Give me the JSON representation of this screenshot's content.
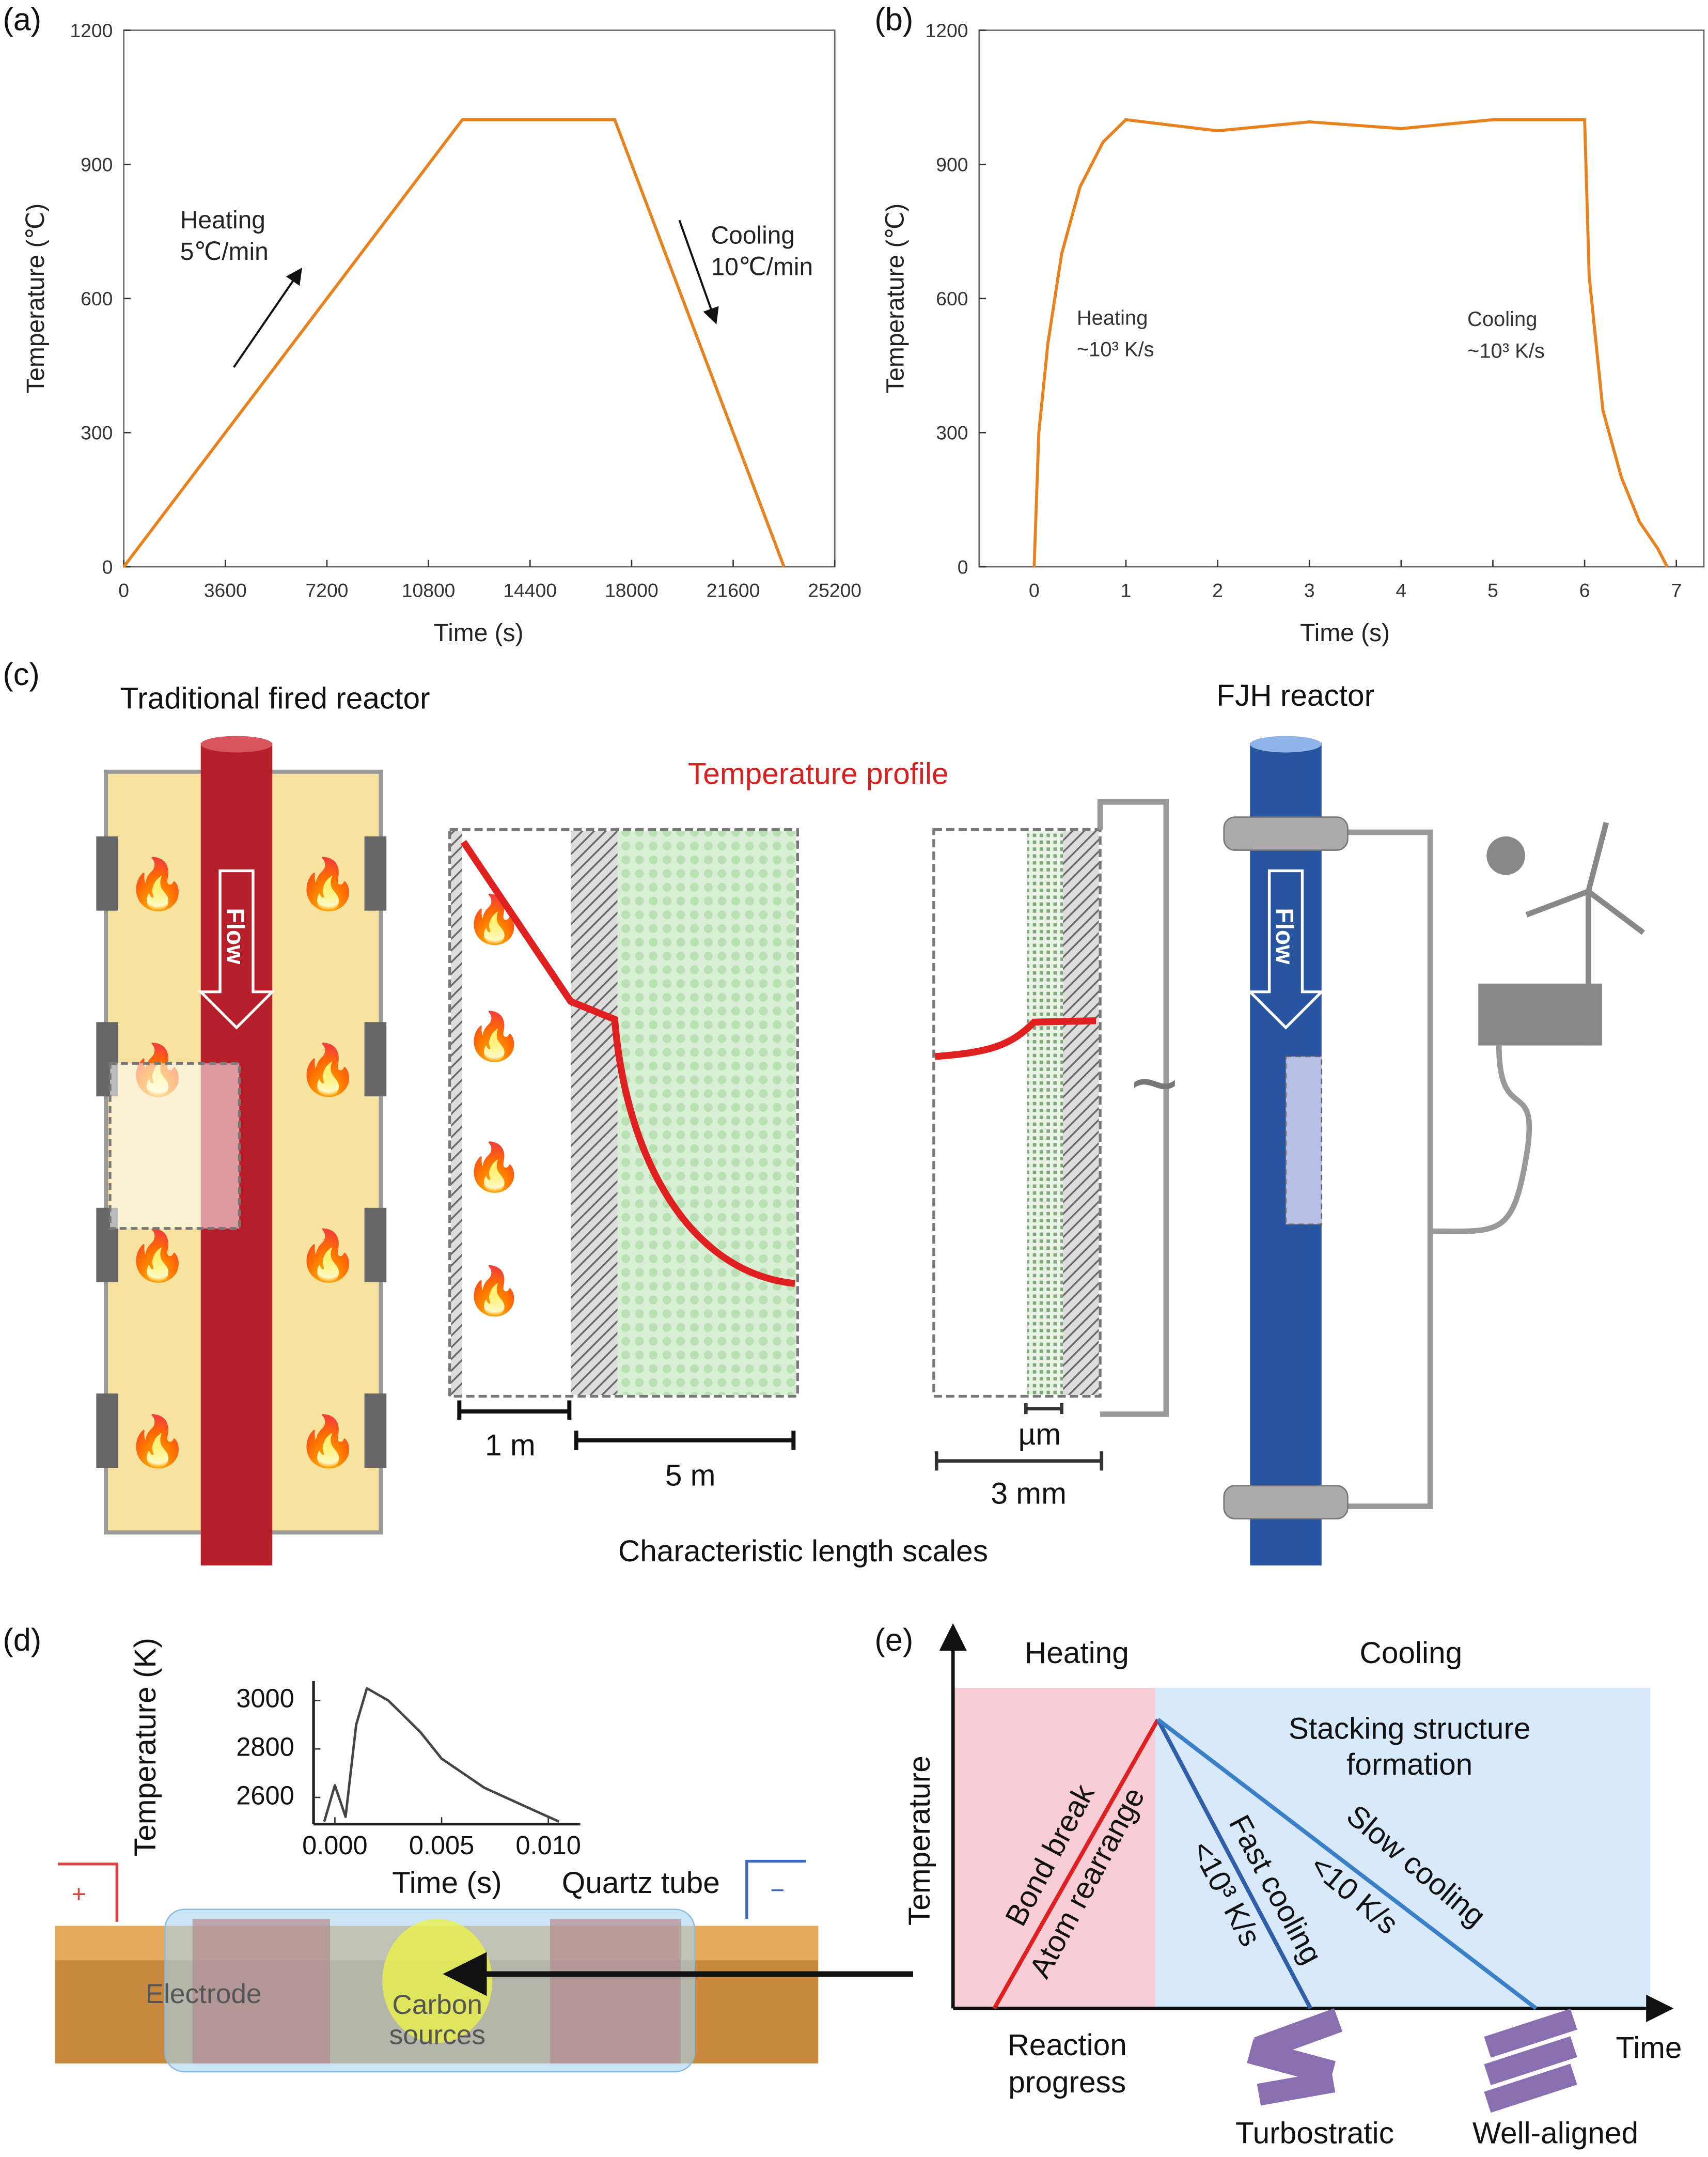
{
  "panels": {
    "a": "(a)",
    "b": "(b)",
    "c": "(c)",
    "d": "(d)",
    "e": "(e)"
  },
  "chart_data": [
    {
      "type": "line",
      "panel": "a",
      "xlabel": "Time (s)",
      "ylabel": "Temperature (℃)",
      "xlim": [
        0,
        25200
      ],
      "ylim": [
        0,
        1200
      ],
      "xticks": [
        "0",
        "3600",
        "7200",
        "10800",
        "14400",
        "18000",
        "21600",
        "25200"
      ],
      "yticks": [
        "0",
        "300",
        "600",
        "900",
        "1200"
      ],
      "x": [
        0,
        12000,
        17400,
        23400
      ],
      "y": [
        0,
        1000,
        1000,
        0
      ],
      "color": "#e8821e",
      "annotations": [
        {
          "line1": "Heating",
          "line2": "5℃/min"
        },
        {
          "line1": "Cooling",
          "line2": "10℃/min"
        }
      ]
    },
    {
      "type": "line",
      "panel": "b",
      "xlabel": "Time (s)",
      "ylabel": "Temperature (℃)",
      "xlim": [
        -0.6,
        7.3
      ],
      "ylim": [
        0,
        1200
      ],
      "xticks": [
        "0",
        "1",
        "2",
        "3",
        "4",
        "5",
        "6",
        "7"
      ],
      "yticks": [
        "0",
        "300",
        "600",
        "900",
        "1200"
      ],
      "x": [
        0,
        0.05,
        0.15,
        0.3,
        0.5,
        0.75,
        1,
        2,
        3,
        4,
        5,
        6,
        6.05,
        6.2,
        6.4,
        6.6,
        6.8,
        6.9
      ],
      "y": [
        0,
        300,
        500,
        700,
        850,
        950,
        1000,
        975,
        995,
        980,
        1000,
        1000,
        650,
        350,
        200,
        100,
        40,
        0
      ],
      "color": "#e8821e",
      "annotations": [
        {
          "line1": "Heating",
          "line2": "~10³ K/s"
        },
        {
          "line1": "Cooling",
          "line2": "~10³ K/s"
        }
      ]
    },
    {
      "type": "line",
      "panel": "d-inset",
      "xlabel": "Time (s)",
      "ylabel": "Temperature (K)",
      "xlim": [
        -0.001,
        0.0115
      ],
      "ylim": [
        2490,
        3080
      ],
      "xticks": [
        "0.000",
        "0.005",
        "0.010"
      ],
      "yticks": [
        "2600",
        "2800",
        "3000"
      ],
      "x": [
        -0.0005,
        0,
        0.0005,
        0.001,
        0.0015,
        0.0025,
        0.004,
        0.005,
        0.007,
        0.009,
        0.0105
      ],
      "y": [
        2500,
        2650,
        2520,
        2900,
        3050,
        3000,
        2870,
        2760,
        2640,
        2560,
        2500
      ],
      "color": "#444444"
    }
  ],
  "c": {
    "traditional": "Traditional fired reactor",
    "fjh": "FJH reactor",
    "profile": "Temperature profile",
    "flow": "Flow",
    "scale_1m": "1 m",
    "scale_5m": "5 m",
    "scale_um": "µm",
    "scale_3mm": "3 mm",
    "length_scales": "Characteristic length scales",
    "ac": "~"
  },
  "d": {
    "quartz": "Quartz tube",
    "electrode": "Electrode",
    "carbon1": "Carbon",
    "carbon2": "sources",
    "plus": "+",
    "minus": "−"
  },
  "e": {
    "heating": "Heating",
    "cooling": "Cooling",
    "ylabel": "Temperature",
    "xlabel": "Time",
    "stack1": "Stacking structure",
    "stack2": "formation",
    "bond": "Bond break",
    "atom": "Atom rearrange",
    "fast": "Fast cooling",
    "fast_rate": "<10³ K/s",
    "slow": "Slow cooling",
    "slow_rate": "<10 K/s",
    "progress1": "Reaction",
    "progress2": "progress",
    "turbo": "Turbostratic",
    "aligned": "Well-aligned"
  },
  "colors": {
    "orange": "#e8821e",
    "red": "#e02020",
    "blue": "#2e5fa8",
    "heat_bg": "#f8cdd5",
    "cool_bg": "#d8e9fb"
  }
}
